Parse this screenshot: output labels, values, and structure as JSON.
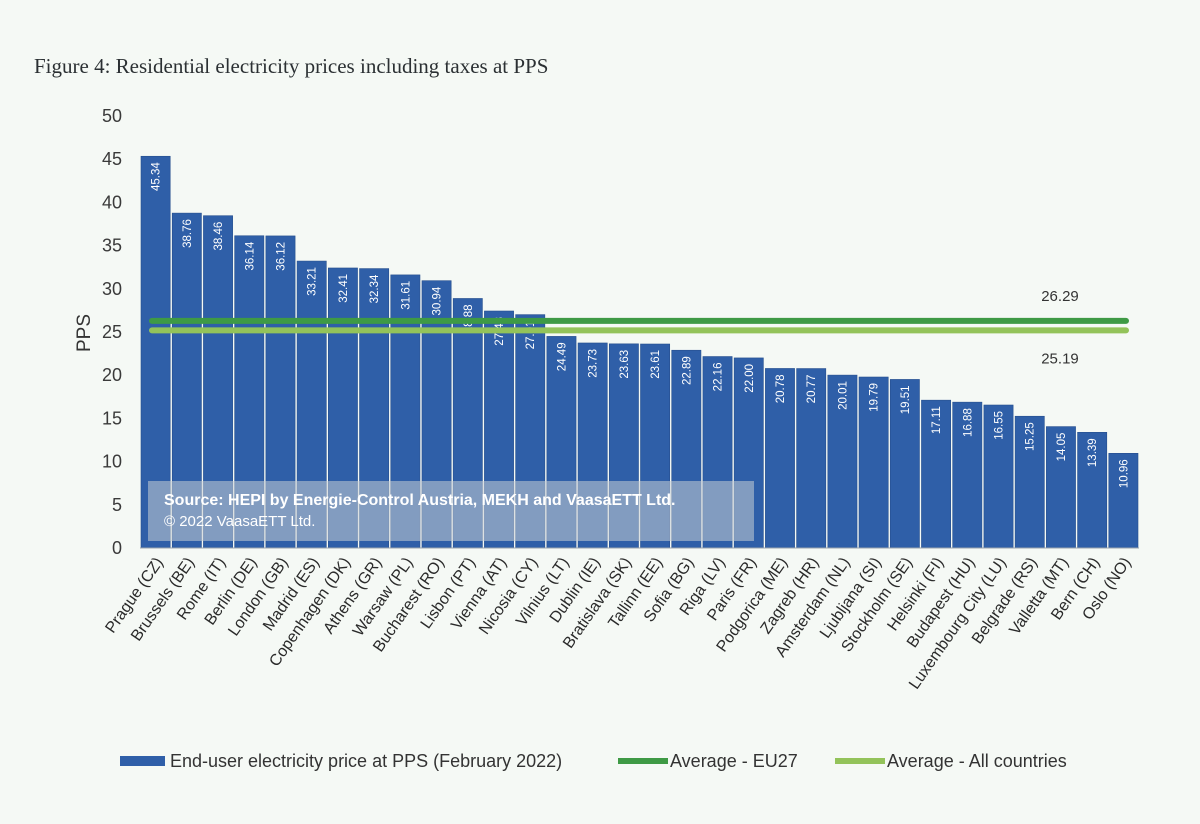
{
  "title": "Figure 4: Residential electricity prices including taxes at PPS",
  "source": {
    "line1": "Source: HEPI by Energie-Control Austria, MEKH and VaasaETT Ltd.",
    "line2": "© 2022 VaasaETT Ltd."
  },
  "colors": {
    "bar": "#2f5fa8",
    "eu27": "#3e9a45",
    "all": "#93c35a"
  },
  "chart_data": {
    "type": "bar",
    "ylabel": "PPS",
    "ylim": [
      0,
      50
    ],
    "yticks": [
      0,
      5,
      10,
      15,
      20,
      25,
      30,
      35,
      40,
      45,
      50
    ],
    "grid": false,
    "legend_position": "bottom",
    "categories": [
      "Prague (CZ)",
      "Brussels (BE)",
      "Rome (IT)",
      "Berlin (DE)",
      "London (GB)",
      "Madrid (ES)",
      "Copenhagen (DK)",
      "Athens (GR)",
      "Warsaw (PL)",
      "Bucharest (RO)",
      "Lisbon (PT)",
      "Vienna (AT)",
      "Nicosia (CY)",
      "Vilnius (LT)",
      "Dublin (IE)",
      "Bratislava (SK)",
      "Tallinn (EE)",
      "Sofia (BG)",
      "Riga (LV)",
      "Paris (FR)",
      "Podgorica (ME)",
      "Zagreb (HR)",
      "Amsterdam (NL)",
      "Ljubljana (SI)",
      "Stockholm (SE)",
      "Helsinki (FI)",
      "Budapest (HU)",
      "Luxembourg City (LU)",
      "Belgrade (RS)",
      "Valletta (MT)",
      "Bern (CH)",
      "Oslo (NO)"
    ],
    "series": [
      {
        "name": "End-user electricity price at PPS (February 2022)",
        "values": [
          45.34,
          38.76,
          38.46,
          36.14,
          36.12,
          33.21,
          32.41,
          32.34,
          31.61,
          30.94,
          28.88,
          27.43,
          27.01,
          24.49,
          23.73,
          23.63,
          23.61,
          22.89,
          22.16,
          22.0,
          20.78,
          20.77,
          20.01,
          19.79,
          19.51,
          17.11,
          16.88,
          16.55,
          15.25,
          14.05,
          13.39,
          10.96
        ],
        "value_labels": [
          "45.34",
          "38.76",
          "38.46",
          "36.14",
          "36.12",
          "33.21",
          "32.41",
          "32.34",
          "31.61",
          "30.94",
          "28.88",
          "27.43",
          "27.01",
          "24.49",
          "23.73",
          "23.63",
          "23.61",
          "22.89",
          "22.16",
          "22.00",
          "20.78",
          "20.77",
          "20.01",
          "19.79",
          "19.51",
          "17.11",
          "16.88",
          "16.55",
          "15.25",
          "14.05",
          "13.39",
          "10.96"
        ]
      }
    ],
    "averages": [
      {
        "name": "Average - EU27",
        "value": 26.29,
        "label": "26.29"
      },
      {
        "name": "Average - All countries",
        "value": 25.19,
        "label": "25.19"
      }
    ]
  }
}
